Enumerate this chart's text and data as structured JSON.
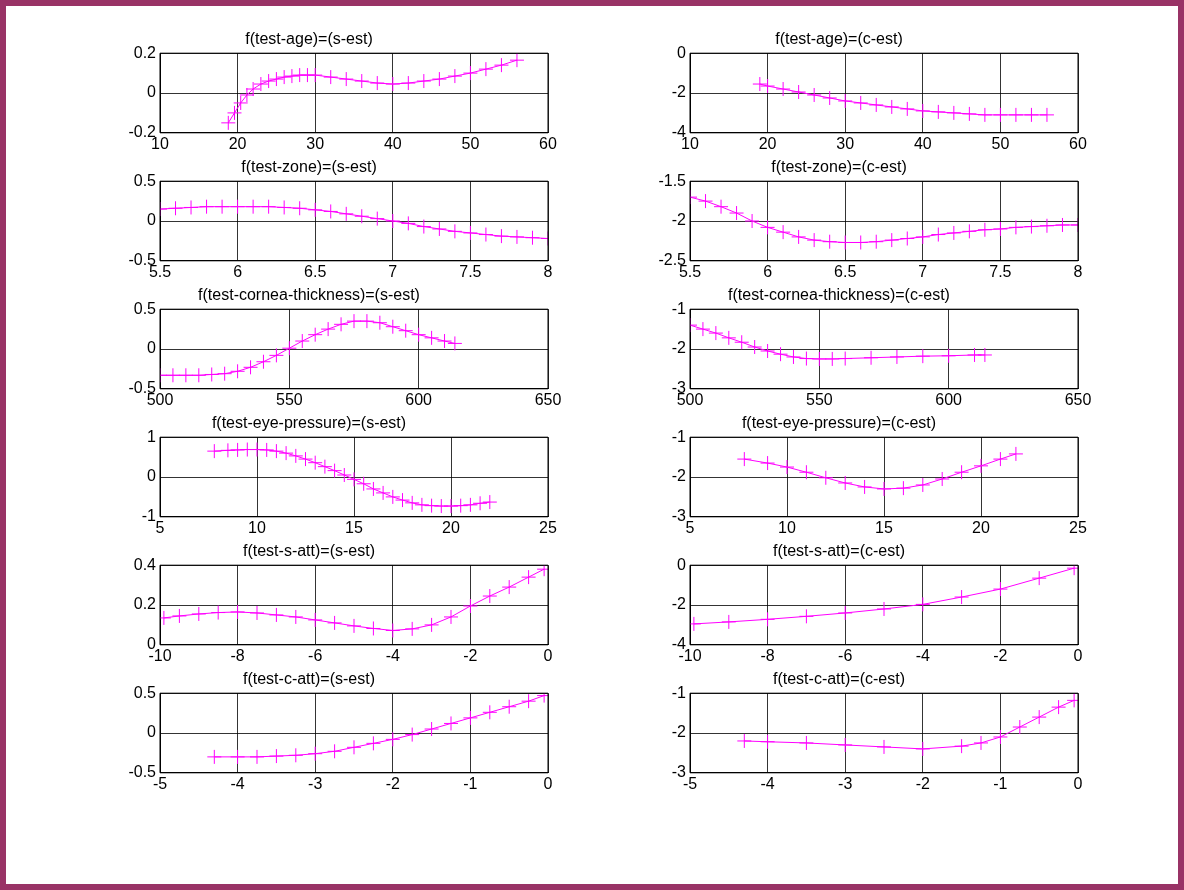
{
  "chart_data": [
    {
      "type": "line",
      "title": "f(test-age)=(s-est)",
      "marker": "cross",
      "grid": true,
      "xlim": [
        10,
        60
      ],
      "xticks": [
        10,
        20,
        30,
        40,
        50,
        60
      ],
      "ylim": [
        -0.2,
        0.2
      ],
      "yticks": [
        -0.2,
        0,
        0.2
      ],
      "x": [
        18.8,
        19.6,
        20.4,
        21.2,
        22,
        23,
        24,
        25,
        26,
        27,
        28,
        29,
        30,
        32,
        34,
        36,
        38,
        40,
        42,
        44,
        46,
        48,
        50,
        52,
        54,
        56
      ],
      "series": [
        {
          "color": "#ff00ff",
          "values": [
            -0.15,
            -0.1,
            -0.05,
            -0.01,
            0.02,
            0.045,
            0.06,
            0.07,
            0.08,
            0.085,
            0.09,
            0.09,
            0.09,
            0.08,
            0.07,
            0.06,
            0.05,
            0.045,
            0.05,
            0.06,
            0.07,
            0.085,
            0.1,
            0.12,
            0.14,
            0.165
          ]
        }
      ]
    },
    {
      "type": "line",
      "title": "f(test-age)=(c-est)",
      "marker": "cross",
      "grid": true,
      "xlim": [
        10,
        60
      ],
      "xticks": [
        10,
        20,
        30,
        40,
        50,
        60
      ],
      "ylim": [
        -4,
        0
      ],
      "yticks": [
        -4,
        -2,
        0
      ],
      "x": [
        19,
        20,
        22,
        24,
        26,
        28,
        30,
        32,
        34,
        36,
        38,
        40,
        42,
        44,
        46,
        48,
        50,
        52,
        54,
        56
      ],
      "series": [
        {
          "color": "#ff00ff",
          "values": [
            -1.55,
            -1.65,
            -1.8,
            -1.95,
            -2.1,
            -2.25,
            -2.4,
            -2.5,
            -2.6,
            -2.7,
            -2.8,
            -2.9,
            -2.95,
            -3,
            -3.05,
            -3.1,
            -3.1,
            -3.1,
            -3.1,
            -3.1
          ]
        }
      ]
    },
    {
      "type": "line",
      "title": "f(test-zone)=(s-est)",
      "marker": "cross",
      "grid": true,
      "xlim": [
        5.5,
        8
      ],
      "xticks": [
        5.5,
        6,
        6.5,
        7,
        7.5,
        8
      ],
      "ylim": [
        -0.5,
        0.5
      ],
      "yticks": [
        -0.5,
        0,
        0.5
      ],
      "x": [
        5.5,
        5.6,
        5.7,
        5.8,
        5.9,
        6,
        6.1,
        6.2,
        6.3,
        6.4,
        6.5,
        6.6,
        6.7,
        6.8,
        6.9,
        7,
        7.1,
        7.2,
        7.3,
        7.4,
        7.5,
        7.6,
        7.7,
        7.8,
        7.9,
        8
      ],
      "series": [
        {
          "color": "#ff00ff",
          "values": [
            0.15,
            0.16,
            0.17,
            0.18,
            0.18,
            0.18,
            0.18,
            0.18,
            0.17,
            0.16,
            0.14,
            0.12,
            0.09,
            0.06,
            0.03,
            0,
            -0.03,
            -0.07,
            -0.1,
            -0.13,
            -0.15,
            -0.17,
            -0.19,
            -0.2,
            -0.21,
            -0.22
          ]
        }
      ]
    },
    {
      "type": "line",
      "title": "f(test-zone)=(c-est)",
      "marker": "cross",
      "grid": true,
      "xlim": [
        5.5,
        8
      ],
      "xticks": [
        5.5,
        6,
        6.5,
        7,
        7.5,
        8
      ],
      "ylim": [
        -2.5,
        -1.5
      ],
      "yticks": [
        -2.5,
        -2,
        -1.5
      ],
      "x": [
        5.5,
        5.6,
        5.7,
        5.8,
        5.9,
        6,
        6.1,
        6.2,
        6.3,
        6.4,
        6.5,
        6.6,
        6.7,
        6.8,
        6.9,
        7,
        7.1,
        7.2,
        7.3,
        7.4,
        7.5,
        7.6,
        7.7,
        7.8,
        7.9,
        8
      ],
      "series": [
        {
          "color": "#ff00ff",
          "values": [
            -1.7,
            -1.75,
            -1.82,
            -1.9,
            -2,
            -2.08,
            -2.14,
            -2.2,
            -2.24,
            -2.26,
            -2.27,
            -2.27,
            -2.26,
            -2.24,
            -2.22,
            -2.2,
            -2.17,
            -2.15,
            -2.13,
            -2.11,
            -2.1,
            -2.08,
            -2.07,
            -2.06,
            -2.05,
            -2.05
          ]
        }
      ]
    },
    {
      "type": "line",
      "title": "f(test-cornea-thickness)=(s-est)",
      "marker": "cross",
      "grid": true,
      "xlim": [
        500,
        650
      ],
      "xticks": [
        500,
        550,
        600,
        650
      ],
      "ylim": [
        -0.5,
        0.5
      ],
      "yticks": [
        -0.5,
        0,
        0.5
      ],
      "x": [
        500,
        505,
        510,
        515,
        520,
        525,
        530,
        535,
        540,
        545,
        550,
        555,
        560,
        565,
        570,
        575,
        580,
        585,
        590,
        595,
        600,
        605,
        610,
        614
      ],
      "series": [
        {
          "color": "#ff00ff",
          "values": [
            -0.33,
            -0.33,
            -0.33,
            -0.33,
            -0.32,
            -0.31,
            -0.28,
            -0.23,
            -0.16,
            -0.08,
            0.01,
            0.1,
            0.18,
            0.25,
            0.31,
            0.35,
            0.35,
            0.33,
            0.28,
            0.23,
            0.18,
            0.14,
            0.1,
            0.07
          ]
        }
      ]
    },
    {
      "type": "line",
      "title": "f(test-cornea-thickness)=(c-est)",
      "marker": "cross",
      "grid": true,
      "xlim": [
        500,
        650
      ],
      "xticks": [
        500,
        550,
        600,
        650
      ],
      "ylim": [
        -3,
        -1
      ],
      "yticks": [
        -3,
        -2,
        -1
      ],
      "x": [
        500,
        505,
        510,
        515,
        520,
        525,
        530,
        535,
        540,
        545,
        550,
        555,
        560,
        570,
        580,
        590,
        600,
        610,
        614
      ],
      "series": [
        {
          "color": "#ff00ff",
          "values": [
            -1.4,
            -1.5,
            -1.6,
            -1.72,
            -1.83,
            -1.95,
            -2.05,
            -2.13,
            -2.2,
            -2.24,
            -2.25,
            -2.25,
            -2.24,
            -2.22,
            -2.2,
            -2.18,
            -2.17,
            -2.15,
            -2.15
          ]
        }
      ]
    },
    {
      "type": "line",
      "title": "f(test-eye-pressure)=(s-est)",
      "marker": "cross",
      "grid": true,
      "xlim": [
        5,
        25
      ],
      "xticks": [
        5,
        10,
        15,
        20,
        25
      ],
      "ylim": [
        -1,
        1
      ],
      "yticks": [
        -1,
        0,
        1
      ],
      "x": [
        7.8,
        8.5,
        9,
        9.5,
        10,
        10.5,
        11,
        11.5,
        12,
        12.5,
        13,
        13.5,
        14,
        14.5,
        15,
        15.5,
        16,
        16.5,
        17,
        17.5,
        18,
        18.5,
        19,
        19.5,
        20,
        20.5,
        21,
        21.5,
        22
      ],
      "series": [
        {
          "color": "#ff00ff",
          "values": [
            0.65,
            0.67,
            0.68,
            0.69,
            0.69,
            0.68,
            0.65,
            0.6,
            0.53,
            0.45,
            0.36,
            0.26,
            0.16,
            0.05,
            -0.06,
            -0.17,
            -0.3,
            -0.4,
            -0.5,
            -0.58,
            -0.65,
            -0.7,
            -0.72,
            -0.73,
            -0.73,
            -0.72,
            -0.7,
            -0.66,
            -0.63
          ]
        }
      ]
    },
    {
      "type": "line",
      "title": "f(test-eye-pressure)=(c-est)",
      "marker": "cross",
      "grid": true,
      "xlim": [
        5,
        25
      ],
      "xticks": [
        5,
        10,
        15,
        20,
        25
      ],
      "ylim": [
        -3,
        -1
      ],
      "yticks": [
        -3,
        -2,
        -1
      ],
      "x": [
        7.8,
        9,
        10,
        11,
        12,
        13,
        14,
        15,
        16,
        17,
        18,
        19,
        20,
        21,
        21.8
      ],
      "series": [
        {
          "color": "#ff00ff",
          "values": [
            -1.55,
            -1.65,
            -1.75,
            -1.88,
            -2.02,
            -2.15,
            -2.25,
            -2.3,
            -2.28,
            -2.2,
            -2.05,
            -1.88,
            -1.72,
            -1.55,
            -1.42
          ]
        }
      ]
    },
    {
      "type": "line",
      "title": "f(test-s-att)=(s-est)",
      "marker": "cross",
      "grid": true,
      "xlim": [
        -10,
        0
      ],
      "xticks": [
        -10,
        -8,
        -6,
        -4,
        -2,
        0
      ],
      "ylim": [
        0,
        0.4
      ],
      "yticks": [
        0,
        0.2,
        0.4
      ],
      "x": [
        -9.9,
        -9.5,
        -9,
        -8.5,
        -8,
        -7.5,
        -7,
        -6.5,
        -6,
        -5.5,
        -5,
        -4.5,
        -4,
        -3.5,
        -3,
        -2.5,
        -2,
        -1.5,
        -1,
        -0.5,
        -0.1
      ],
      "series": [
        {
          "color": "#ff00ff",
          "values": [
            0.135,
            0.145,
            0.155,
            0.162,
            0.165,
            0.16,
            0.15,
            0.14,
            0.125,
            0.11,
            0.095,
            0.082,
            0.072,
            0.08,
            0.1,
            0.14,
            0.195,
            0.245,
            0.29,
            0.34,
            0.38
          ]
        }
      ]
    },
    {
      "type": "line",
      "title": "f(test-s-att)=(c-est)",
      "marker": "cross",
      "grid": true,
      "xlim": [
        -10,
        0
      ],
      "xticks": [
        -10,
        -8,
        -6,
        -4,
        -2,
        0
      ],
      "ylim": [
        -4,
        0
      ],
      "yticks": [
        -4,
        -2,
        0
      ],
      "x": [
        -9.9,
        -9,
        -8,
        -7,
        -6,
        -5,
        -4,
        -3,
        -2,
        -1,
        -0.1
      ],
      "series": [
        {
          "color": "#ff00ff",
          "values": [
            -2.95,
            -2.85,
            -2.72,
            -2.57,
            -2.4,
            -2.2,
            -1.97,
            -1.6,
            -1.2,
            -0.65,
            -0.15
          ]
        }
      ]
    },
    {
      "type": "line",
      "title": "f(test-c-att)=(s-est)",
      "marker": "cross",
      "grid": true,
      "xlim": [
        -5,
        0
      ],
      "xticks": [
        -5,
        -4,
        -3,
        -2,
        -1,
        0
      ],
      "ylim": [
        -0.5,
        0.5
      ],
      "yticks": [
        -0.5,
        0,
        0.5
      ],
      "x": [
        -4.3,
        -4,
        -3.75,
        -3.5,
        -3.25,
        -3,
        -2.75,
        -2.5,
        -2.25,
        -2,
        -1.75,
        -1.5,
        -1.25,
        -1,
        -0.75,
        -0.5,
        -0.25,
        -0.05
      ],
      "series": [
        {
          "color": "#ff00ff",
          "values": [
            -0.3,
            -0.3,
            -0.3,
            -0.29,
            -0.28,
            -0.26,
            -0.23,
            -0.18,
            -0.13,
            -0.08,
            -0.02,
            0.05,
            0.12,
            0.19,
            0.26,
            0.33,
            0.4,
            0.47
          ]
        }
      ]
    },
    {
      "type": "line",
      "title": "f(test-c-att)=(c-est)",
      "marker": "cross",
      "grid": true,
      "xlim": [
        -5,
        0
      ],
      "xticks": [
        -5,
        -4,
        -3,
        -2,
        -1,
        0
      ],
      "ylim": [
        -3,
        -1
      ],
      "yticks": [
        -3,
        -2,
        -1
      ],
      "x": [
        -4.3,
        -4,
        -3.5,
        -3,
        -2.5,
        -2,
        -1.5,
        -1.25,
        -1,
        -0.75,
        -0.5,
        -0.25,
        -0.05
      ],
      "series": [
        {
          "color": "#ff00ff",
          "values": [
            -2.2,
            -2.22,
            -2.25,
            -2.3,
            -2.35,
            -2.4,
            -2.33,
            -2.25,
            -2.1,
            -1.85,
            -1.6,
            -1.35,
            -1.18
          ]
        }
      ]
    }
  ]
}
